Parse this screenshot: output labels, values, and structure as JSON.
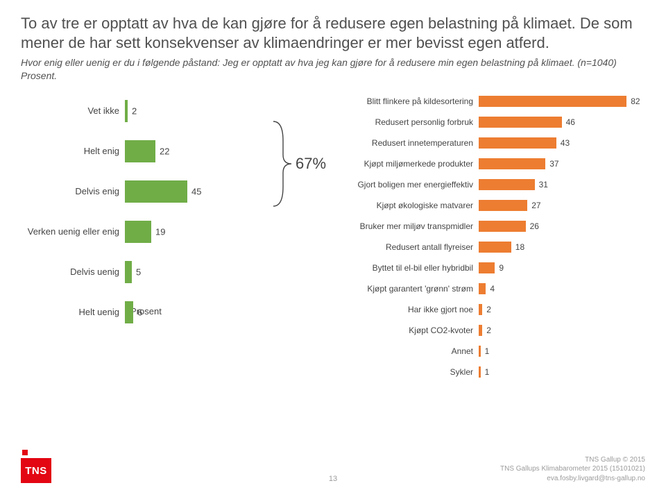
{
  "header": {
    "title": "To av tre er opptatt av hva de kan gjøre for å redusere egen belastning på klimaet. De som mener de har sett konsekvenser av klimaendringer er mer bevisst egen atferd.",
    "subtitle": "Hvor enig eller uenig er du i følgende påstand:\nJeg er opptatt av hva jeg kan gjøre for å redusere min egen belastning på klimaet. (n=1040) Prosent."
  },
  "left_chart": {
    "type": "bar",
    "orientation": "horizontal",
    "axis_label": "Prosent",
    "xlim": [
      0,
      100
    ],
    "bar_color": "#70ad47",
    "label_fontsize": 13,
    "value_fontsize": 13,
    "background_color": "#ffffff",
    "items": [
      {
        "label": "Vet ikke",
        "value": 2
      },
      {
        "label": "Helt enig",
        "value": 22
      },
      {
        "label": "Delvis enig",
        "value": 45
      },
      {
        "label": "Verken uenig eller enig",
        "value": 19
      },
      {
        "label": "Delvis uenig",
        "value": 5
      },
      {
        "label": "Helt uenig",
        "value": 6
      }
    ]
  },
  "callout": {
    "text": "67%"
  },
  "right_chart": {
    "type": "bar",
    "orientation": "horizontal",
    "xlim": [
      0,
      100
    ],
    "bar_color": "#ed7d31",
    "label_fontsize": 12,
    "value_fontsize": 12,
    "background_color": "#ffffff",
    "items": [
      {
        "label": "Blitt flinkere på kildesortering",
        "value": 82
      },
      {
        "label": "Redusert personlig forbruk",
        "value": 46
      },
      {
        "label": "Redusert innetemperaturen",
        "value": 43
      },
      {
        "label": "Kjøpt miljømerkede produkter",
        "value": 37
      },
      {
        "label": "Gjort boligen mer energieffektiv",
        "value": 31
      },
      {
        "label": "Kjøpt økologiske matvarer",
        "value": 27
      },
      {
        "label": "Bruker mer miljøv transpmidler",
        "value": 26
      },
      {
        "label": "Redusert antall flyreiser",
        "value": 18
      },
      {
        "label": "Byttet til el-bil eller hybridbil",
        "value": 9
      },
      {
        "label": "Kjøpt garantert 'grønn' strøm",
        "value": 4
      },
      {
        "label": "Har ikke gjort noe",
        "value": 2
      },
      {
        "label": "Kjøpt CO2-kvoter",
        "value": 2
      },
      {
        "label": "Annet",
        "value": 1
      },
      {
        "label": "Sykler",
        "value": 1
      }
    ]
  },
  "footer": {
    "logo_text": "TNS",
    "page_number": "13",
    "credit_line1": "TNS Gallup © 2015",
    "credit_line2": "TNS Gallups Klimabarometer 2015 (15101021)",
    "credit_line3": "eva.fosby.livgard@tns-gallup.no"
  }
}
